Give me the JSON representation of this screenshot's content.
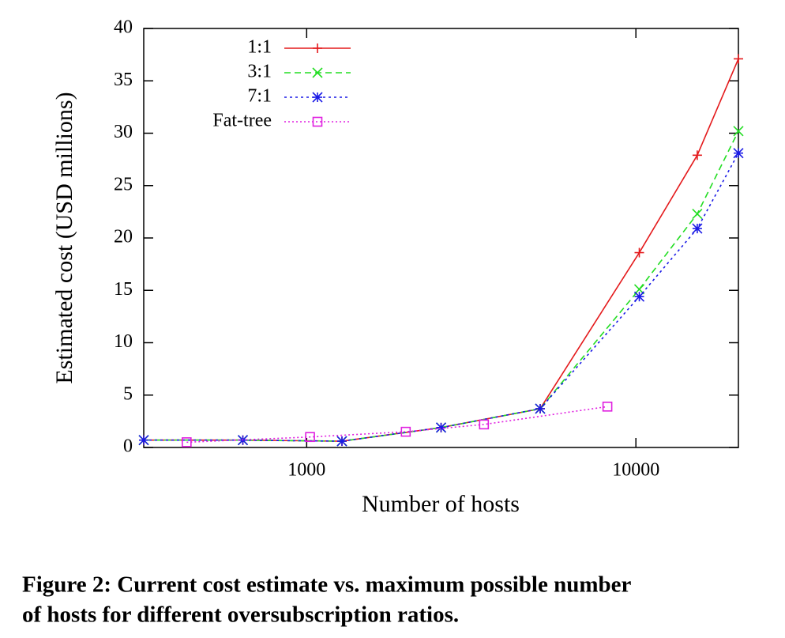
{
  "chart_data": {
    "type": "line",
    "xlabel": "Number of hosts",
    "ylabel": "Estimated cost (USD millions)",
    "xscale": "log",
    "xlim": [
      320,
      20480
    ],
    "ylim": [
      0,
      40
    ],
    "xticks": [
      1000,
      10000
    ],
    "yticks": [
      0,
      5,
      10,
      15,
      20,
      25,
      30,
      35,
      40
    ],
    "legend": "upper left",
    "series": [
      {
        "name": "1:1",
        "color": "#e41a1c",
        "dash": "solid",
        "marker": "plus",
        "x": [
          320,
          640,
          1280,
          2560,
          5120,
          10240,
          15360,
          20480
        ],
        "values": [
          0.7,
          0.7,
          0.6,
          1.9,
          3.7,
          18.6,
          27.9,
          37.1
        ]
      },
      {
        "name": "3:1",
        "color": "#22dd22",
        "dash": "dashed",
        "marker": "cross",
        "x": [
          320,
          640,
          1280,
          2560,
          5120,
          10240,
          15360,
          20480
        ],
        "values": [
          0.7,
          0.7,
          0.6,
          1.9,
          3.7,
          15.1,
          22.3,
          30.2
        ]
      },
      {
        "name": "7:1",
        "color": "#1a1ae6",
        "dash": "dotted",
        "marker": "star",
        "x": [
          320,
          640,
          1280,
          2560,
          5120,
          10240,
          15360,
          20480
        ],
        "values": [
          0.7,
          0.7,
          0.6,
          1.9,
          3.7,
          14.4,
          20.9,
          28.1
        ]
      },
      {
        "name": "Fat-tree",
        "color": "#e020e0",
        "dash": "fine",
        "marker": "square",
        "x": [
          432,
          1024,
          2000,
          3456,
          8192
        ],
        "values": [
          0.5,
          1.0,
          1.5,
          2.2,
          3.9
        ]
      }
    ]
  },
  "caption": [
    "Figure 2: Current cost estimate vs. maximum possible number",
    "of hosts for different oversubscription ratios."
  ]
}
